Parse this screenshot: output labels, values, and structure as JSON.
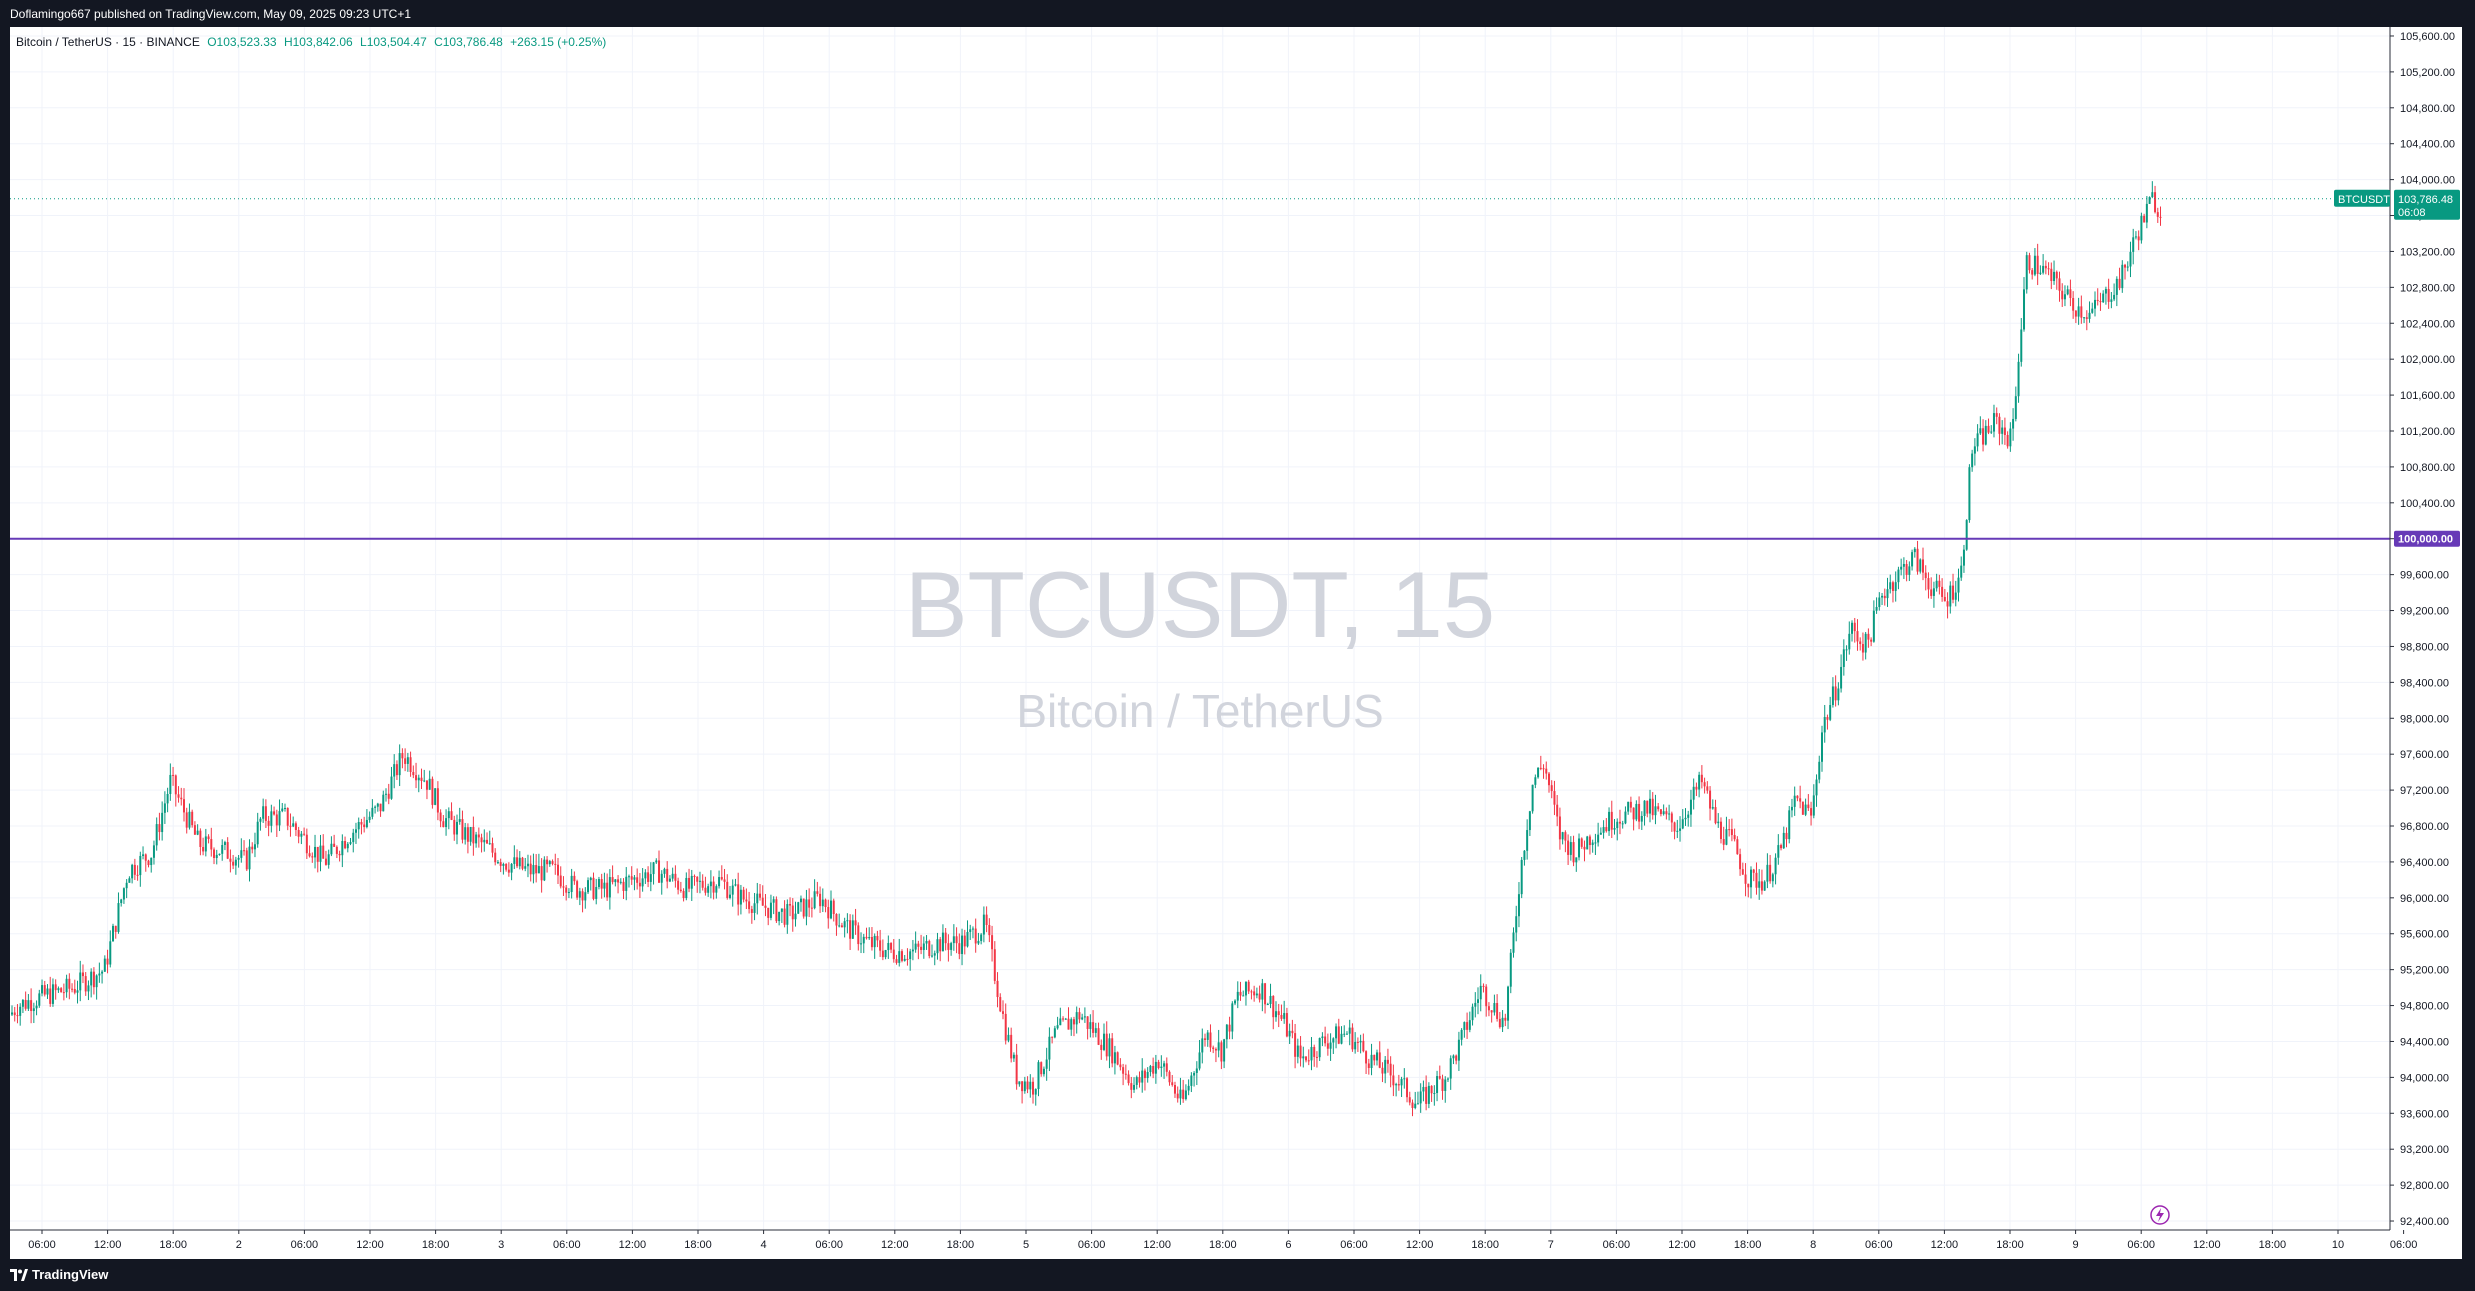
{
  "header": {
    "published": "Doflamingo667 published on TradingView.com, May 09, 2025 09:23 UTC+1"
  },
  "legend": {
    "symbol": "Bitcoin / TetherUS · 15 · BINANCE",
    "open": "O103,523.33",
    "high": "H103,842.06",
    "low": "L103,504.47",
    "close": "C103,786.48",
    "change": "+263.15 (+0.25%)"
  },
  "watermark": {
    "title": "BTCUSDT, 15",
    "subtitle": "Bitcoin / TetherUS"
  },
  "footer": {
    "logo_text": "TradingView"
  },
  "colors": {
    "up": "#089981",
    "down": "#F23645",
    "level": "#673AB7",
    "grid": "#E0E3EB"
  },
  "chart_data": {
    "type": "candlestick",
    "symbol": "BTCUSDT",
    "interval": "15",
    "exchange": "BINANCE",
    "ylim": [
      92300,
      105700
    ],
    "y_ticks": [
      92400,
      92800,
      93200,
      93600,
      94000,
      94400,
      94800,
      95200,
      95600,
      96000,
      96400,
      96800,
      97200,
      97600,
      98000,
      98400,
      98800,
      99200,
      99600,
      100000,
      100400,
      100800,
      101200,
      101600,
      102000,
      102400,
      102800,
      103200,
      103600,
      104000,
      104400,
      104800,
      105200,
      105600
    ],
    "y_tick_labels": [
      "92,400.00",
      "92,800.00",
      "93,200.00",
      "93,600.00",
      "94,000.00",
      "94,400.00",
      "94,800.00",
      "95,200.00",
      "95,600.00",
      "96,000.00",
      "96,400.00",
      "96,800.00",
      "97,200.00",
      "97,600.00",
      "98,000.00",
      "98,400.00",
      "98,800.00",
      "99,200.00",
      "99,600.00",
      "100,000.00",
      "100,400.00",
      "100,800.00",
      "101,200.00",
      "101,600.00",
      "102,000.00",
      "102,400.00",
      "102,800.00",
      "103,200.00",
      "103,600.00",
      "104,000.00",
      "104,400.00",
      "104,800.00",
      "105,200.00",
      "105,600.00"
    ],
    "x_ticks": [
      "06:00",
      "12:00",
      "18:00",
      "2",
      "06:00",
      "12:00",
      "18:00",
      "3",
      "06:00",
      "12:00",
      "18:00",
      "4",
      "06:00",
      "12:00",
      "18:00",
      "5",
      "06:00",
      "12:00",
      "18:00",
      "6",
      "06:00",
      "12:00",
      "18:00",
      "7",
      "06:00",
      "12:00",
      "18:00",
      "8",
      "06:00",
      "12:00",
      "18:00",
      "9",
      "06:00",
      "12:00",
      "18:00",
      "10",
      "06:00"
    ],
    "horizontal_level": {
      "value": 100000,
      "label": "100,000.00"
    },
    "last_price": {
      "symbol": "BTCUSDT",
      "value": 103786.48,
      "label": "103,786.48",
      "countdown": "06:08"
    },
    "series": [
      {
        "name": "BTCUSDT",
        "kind": "close_path_keypoints",
        "x": [
          0,
          5,
          20,
          40,
          60,
          75,
          90,
          102,
          120,
          140,
          150,
          160,
          175,
          185,
          200,
          215,
          235,
          250,
          265,
          275,
          290,
          300,
          315,
          330,
          345,
          360,
          378,
          395,
          412,
          430,
          450,
          465,
          480,
          495,
          515,
          530,
          545,
          560,
          575,
          590,
          605,
          620,
          632,
          640,
          650,
          665,
          680,
          700,
          715,
          730,
          745,
          760,
          770,
          780,
          795,
          810,
          820,
          835,
          850,
          865,
          880,
          895,
          905,
          912,
          920,
          935,
          950,
          960,
          968,
          975,
          985,
          995,
          1005,
          1020,
          1040,
          1060,
          1075,
          1085,
          1095,
          1105,
          1115,
          1125,
          1135,
          1145,
          1152,
          1160,
          1170,
          1180,
          1190,
          1200,
          1210,
          1220,
          1230,
          1240,
          1247,
          1252,
          1262,
          1272,
          1282,
          1292,
          1302,
          1312,
          1322,
          1332,
          1342,
          1352,
          1362,
          1368
        ],
        "y": [
          94700,
          94800,
          94900,
          95000,
          95200,
          96300,
          96500,
          97300,
          96600,
          96500,
          96400,
          96900,
          96900,
          96700,
          96400,
          96700,
          97000,
          97600,
          97300,
          96900,
          96700,
          96600,
          96400,
          96300,
          96300,
          96100,
          96100,
          96200,
          96300,
          96100,
          96200,
          96000,
          95900,
          95800,
          96000,
          95700,
          95500,
          95400,
          95400,
          95500,
          95500,
          95700,
          94600,
          94000,
          93900,
          94500,
          94700,
          94300,
          93900,
          94200,
          93700,
          94500,
          94300,
          94900,
          95000,
          94600,
          94200,
          94400,
          94500,
          94200,
          94000,
          93700,
          93900,
          94000,
          94300,
          95000,
          94600,
          96300,
          97300,
          97500,
          96700,
          96500,
          96700,
          96900,
          97000,
          96800,
          97300,
          96800,
          96600,
          96200,
          96200,
          96500,
          97100,
          96900,
          97900,
          98300,
          99000,
          98800,
          99400,
          99600,
          99800,
          99500,
          99300,
          99600,
          101000,
          101100,
          101300,
          101100,
          103100,
          103000,
          102800,
          102600,
          102500,
          102700,
          102900,
          103400,
          103800,
          103600
        ]
      }
    ]
  }
}
